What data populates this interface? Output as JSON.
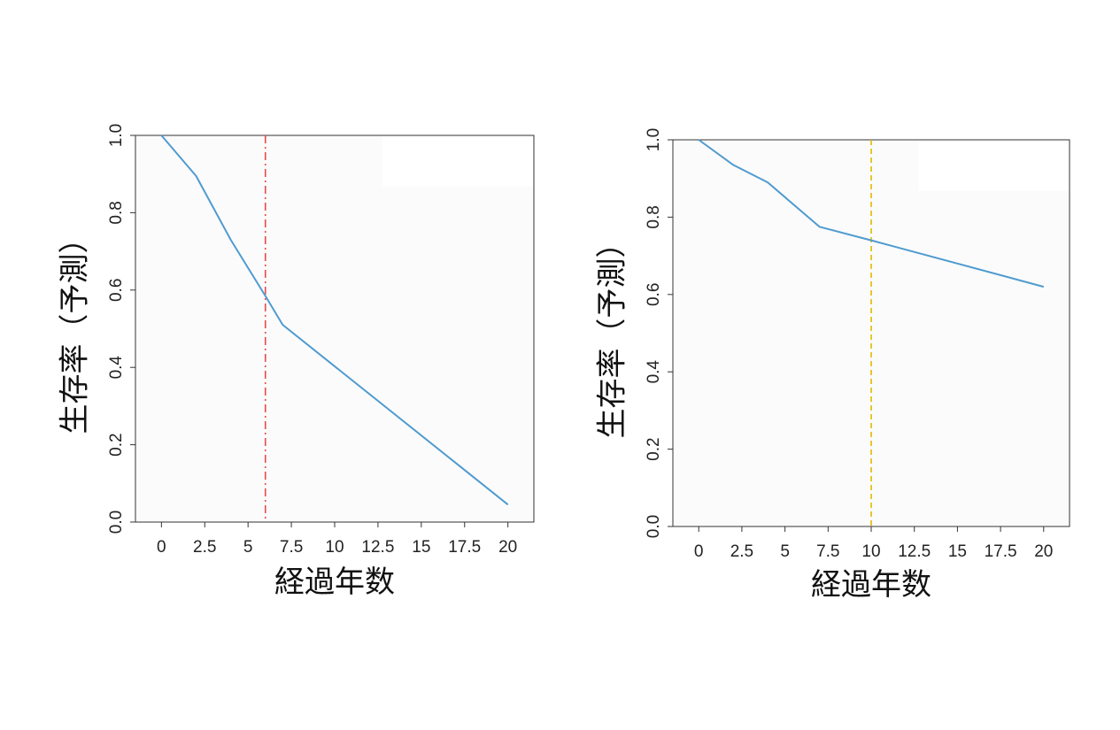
{
  "chart_data": [
    {
      "type": "line",
      "xlabel": "経過年数",
      "ylabel": "生存率（予測）",
      "xlim": [
        -1.5,
        21.5
      ],
      "ylim": [
        0,
        1.0
      ],
      "xticks": [
        0,
        2.5,
        5,
        7.5,
        10,
        12.5,
        15,
        17.5,
        20
      ],
      "xtick_labels": [
        "0",
        "2.5",
        "5",
        "7.5",
        "10",
        "12.5",
        "15",
        "17.5",
        "20"
      ],
      "yticks": [
        0,
        0.2,
        0.4,
        0.6,
        0.8,
        1.0
      ],
      "ytick_labels": [
        "0.0",
        "0.2",
        "0.4",
        "0.6",
        "0.8",
        "1.0"
      ],
      "grid": false,
      "series": [
        {
          "color": "#4f9bd0",
          "x": [
            0,
            2,
            4,
            6,
            7,
            20
          ],
          "y": [
            1.0,
            0.895,
            0.73,
            0.585,
            0.51,
            0.045
          ]
        }
      ],
      "vline": {
        "x": 6,
        "style": "dashdot",
        "color": "#e84a4a"
      }
    },
    {
      "type": "line",
      "xlabel": "経過年数",
      "ylabel": "生存率（予測）",
      "xlim": [
        -1.5,
        21.5
      ],
      "ylim": [
        0,
        1.0
      ],
      "xticks": [
        0,
        2.5,
        5,
        7.5,
        10,
        12.5,
        15,
        17.5,
        20
      ],
      "xtick_labels": [
        "0",
        "2.5",
        "5",
        "7.5",
        "10",
        "12.5",
        "15",
        "17.5",
        "20"
      ],
      "yticks": [
        0,
        0.2,
        0.4,
        0.6,
        0.8,
        1.0
      ],
      "ytick_labels": [
        "0.0",
        "0.2",
        "0.4",
        "0.6",
        "0.8",
        "1.0"
      ],
      "grid": false,
      "series": [
        {
          "color": "#4f9bd0",
          "x": [
            0,
            2,
            4,
            7,
            10,
            20
          ],
          "y": [
            1.0,
            0.935,
            0.89,
            0.775,
            0.74,
            0.62
          ]
        }
      ],
      "vline": {
        "x": 10,
        "style": "dashed",
        "color": "#e0b800"
      }
    }
  ]
}
